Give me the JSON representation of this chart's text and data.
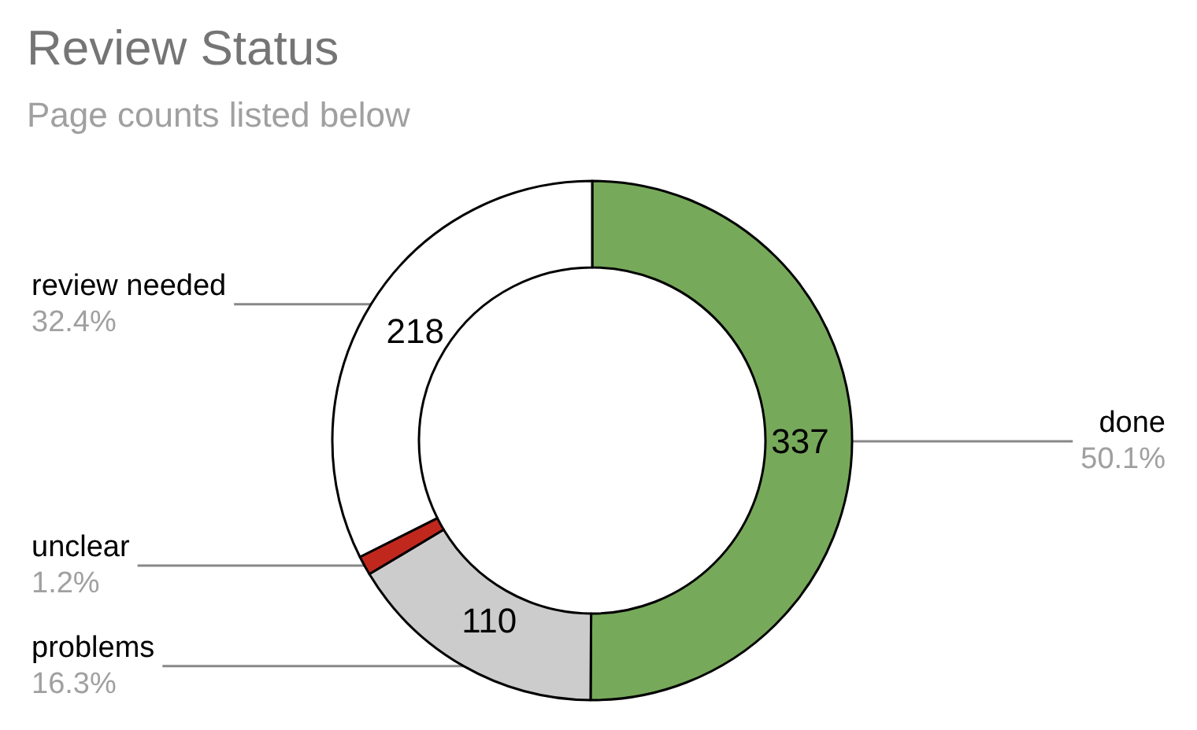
{
  "chart_data": {
    "type": "donut",
    "title": "Review Status",
    "subtitle": "Page counts listed below",
    "categories": [
      "done",
      "problems",
      "unclear",
      "review needed"
    ],
    "values": [
      50.1,
      16.3,
      1.2,
      32.4
    ],
    "colors": [
      "#77a95a",
      "#cccccc",
      "#c0281e",
      "#ffffff"
    ],
    "value_labels": [
      "50.1%",
      "16.3%",
      "1.2%",
      "32.4%"
    ],
    "annotations": [
      {
        "text": "337",
        "x": "done"
      },
      {
        "text": "110",
        "x": "problems"
      },
      {
        "text": "218",
        "x": "review needed"
      }
    ]
  }
}
